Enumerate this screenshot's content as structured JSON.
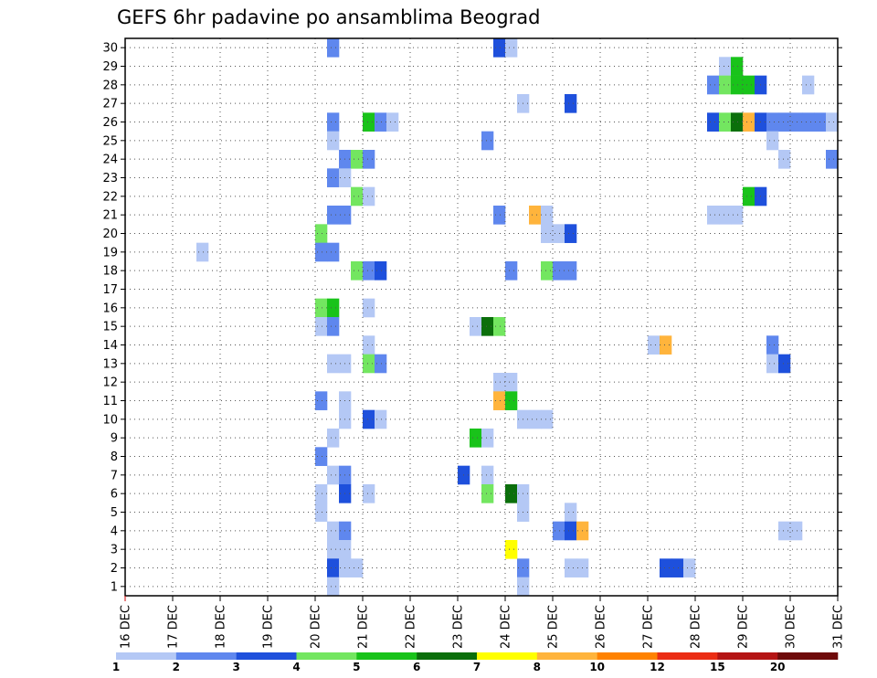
{
  "chart_data": {
    "type": "heatmap",
    "title": "GEFS 6hr padavine po ansamblima Beograd",
    "x_tick_labels": [
      "16 DEC",
      "17 DEC",
      "18 DEC",
      "19 DEC",
      "20 DEC",
      "21 DEC",
      "22 DEC",
      "23 DEC",
      "24 DEC",
      "25 DEC",
      "26 DEC",
      "27 DEC",
      "28 DEC",
      "29 DEC",
      "30 DEC",
      "31 DEC"
    ],
    "y_tick_labels": [
      "1",
      "2",
      "3",
      "4",
      "5",
      "6",
      "7",
      "8",
      "9",
      "10",
      "11",
      "12",
      "13",
      "14",
      "15",
      "16",
      "17",
      "18",
      "19",
      "20",
      "21",
      "22",
      "23",
      "24",
      "25",
      "26",
      "27",
      "28",
      "29",
      "30"
    ],
    "x_range_steps": [
      0,
      60
    ],
    "y_range": [
      0.5,
      30.5
    ],
    "grid": true,
    "legend_position": "bottom",
    "legend": {
      "bounds": [
        "1",
        "2",
        "3",
        "4",
        "5",
        "6",
        "7",
        "8",
        "10",
        "12",
        "15",
        "20"
      ],
      "colors": [
        "#b4c8f5",
        "#5f87ee",
        "#1e50dc",
        "#73e660",
        "#19c31a",
        "#0b6f0b",
        "#ffff00",
        "#ffb43c",
        "#ff8200",
        "#eb2d14",
        "#b41414",
        "#6e0a0a"
      ]
    },
    "cells_note_units": "[member, step (6h from 16 DEC 00Z), class index 0..11]",
    "cells": [
      [
        30,
        17,
        1
      ],
      [
        30,
        31,
        2
      ],
      [
        30,
        32,
        0
      ],
      [
        29,
        50,
        0
      ],
      [
        29,
        51,
        4
      ],
      [
        28,
        49,
        1
      ],
      [
        28,
        50,
        3
      ],
      [
        28,
        51,
        4
      ],
      [
        28,
        52,
        4
      ],
      [
        28,
        53,
        2
      ],
      [
        28,
        57,
        0
      ],
      [
        27,
        33,
        0
      ],
      [
        27,
        37,
        2
      ],
      [
        26,
        17,
        1
      ],
      [
        26,
        20,
        4
      ],
      [
        26,
        21,
        1
      ],
      [
        26,
        22,
        0
      ],
      [
        26,
        49,
        2
      ],
      [
        26,
        50,
        3
      ],
      [
        26,
        51,
        5
      ],
      [
        26,
        52,
        7
      ],
      [
        26,
        53,
        2
      ],
      [
        26,
        54,
        1
      ],
      [
        26,
        55,
        1
      ],
      [
        26,
        56,
        1
      ],
      [
        26,
        57,
        1
      ],
      [
        26,
        58,
        1
      ],
      [
        26,
        59,
        0
      ],
      [
        25,
        17,
        0
      ],
      [
        25,
        30,
        1
      ],
      [
        25,
        54,
        0
      ],
      [
        24,
        18,
        1
      ],
      [
        24,
        19,
        3
      ],
      [
        24,
        20,
        1
      ],
      [
        24,
        55,
        0
      ],
      [
        24,
        59,
        1
      ],
      [
        23,
        17,
        1
      ],
      [
        23,
        18,
        0
      ],
      [
        22,
        19,
        3
      ],
      [
        22,
        20,
        0
      ],
      [
        22,
        52,
        4
      ],
      [
        22,
        53,
        2
      ],
      [
        21,
        17,
        1
      ],
      [
        21,
        18,
        1
      ],
      [
        21,
        31,
        1
      ],
      [
        21,
        34,
        7
      ],
      [
        21,
        35,
        0
      ],
      [
        21,
        49,
        0
      ],
      [
        21,
        50,
        0
      ],
      [
        21,
        51,
        0
      ],
      [
        20,
        16,
        3
      ],
      [
        20,
        35,
        0
      ],
      [
        20,
        36,
        0
      ],
      [
        20,
        37,
        2
      ],
      [
        19,
        16,
        1
      ],
      [
        19,
        17,
        1
      ],
      [
        19,
        6,
        0
      ],
      [
        18,
        19,
        3
      ],
      [
        18,
        20,
        1
      ],
      [
        18,
        21,
        2
      ],
      [
        18,
        32,
        1
      ],
      [
        18,
        35,
        3
      ],
      [
        18,
        36,
        1
      ],
      [
        18,
        37,
        1
      ],
      [
        16,
        16,
        3
      ],
      [
        16,
        17,
        4
      ],
      [
        16,
        20,
        0
      ],
      [
        15,
        16,
        0
      ],
      [
        15,
        17,
        1
      ],
      [
        15,
        29,
        0
      ],
      [
        15,
        30,
        5
      ],
      [
        15,
        31,
        3
      ],
      [
        14,
        20,
        0
      ],
      [
        14,
        44,
        0
      ],
      [
        14,
        45,
        7
      ],
      [
        14,
        54,
        1
      ],
      [
        13,
        17,
        0
      ],
      [
        13,
        18,
        0
      ],
      [
        13,
        20,
        3
      ],
      [
        13,
        21,
        1
      ],
      [
        13,
        54,
        0
      ],
      [
        13,
        55,
        2
      ],
      [
        12,
        31,
        0
      ],
      [
        12,
        32,
        0
      ],
      [
        11,
        16,
        1
      ],
      [
        11,
        18,
        0
      ],
      [
        11,
        31,
        7
      ],
      [
        11,
        32,
        4
      ],
      [
        10,
        18,
        0
      ],
      [
        10,
        20,
        2
      ],
      [
        10,
        21,
        0
      ],
      [
        10,
        33,
        0
      ],
      [
        10,
        34,
        0
      ],
      [
        10,
        35,
        0
      ],
      [
        9,
        17,
        0
      ],
      [
        9,
        29,
        4
      ],
      [
        9,
        30,
        0
      ],
      [
        8,
        16,
        1
      ],
      [
        7,
        17,
        0
      ],
      [
        7,
        18,
        1
      ],
      [
        7,
        28,
        2
      ],
      [
        7,
        30,
        0
      ],
      [
        6,
        16,
        0
      ],
      [
        6,
        18,
        2
      ],
      [
        6,
        20,
        0
      ],
      [
        6,
        30,
        3
      ],
      [
        6,
        32,
        5
      ],
      [
        6,
        33,
        0
      ],
      [
        5,
        16,
        0
      ],
      [
        5,
        33,
        0
      ],
      [
        5,
        37,
        0
      ],
      [
        4,
        17,
        0
      ],
      [
        4,
        18,
        1
      ],
      [
        4,
        36,
        1
      ],
      [
        4,
        37,
        2
      ],
      [
        4,
        38,
        7
      ],
      [
        4,
        55,
        0
      ],
      [
        4,
        56,
        0
      ],
      [
        3,
        17,
        0
      ],
      [
        3,
        18,
        0
      ],
      [
        3,
        32,
        6
      ],
      [
        2,
        17,
        2
      ],
      [
        2,
        18,
        0
      ],
      [
        2,
        19,
        0
      ],
      [
        2,
        33,
        1
      ],
      [
        2,
        37,
        0
      ],
      [
        2,
        38,
        0
      ],
      [
        2,
        45,
        2
      ],
      [
        2,
        46,
        2
      ],
      [
        2,
        47,
        0
      ],
      [
        1,
        17,
        0
      ],
      [
        1,
        33,
        0
      ]
    ]
  }
}
